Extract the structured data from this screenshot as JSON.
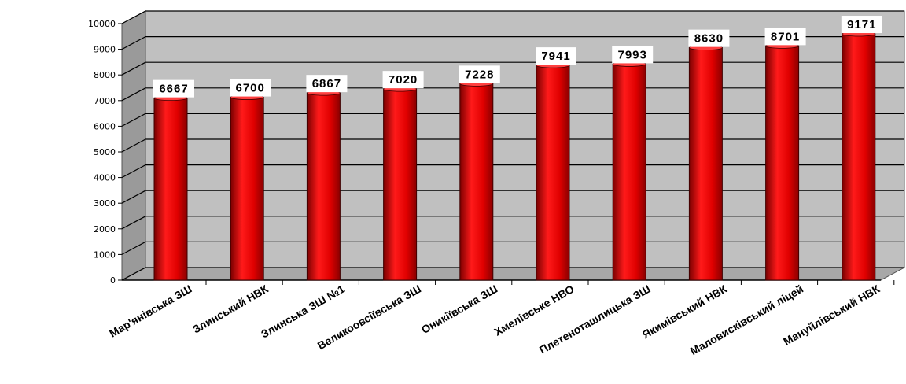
{
  "chart_data": {
    "type": "bar",
    "categories": [
      "Мар'янівська ЗШ",
      "Злинський НВК",
      "Злинська ЗШ №1",
      "Великоовсіївська ЗШ",
      "Оникіївська ЗШ",
      "Хмелівське НВО",
      "Плетеноташлицька ЗШ",
      "Якимівський НВК",
      "Маловисківський ліцей",
      "Мануйлівський НВК"
    ],
    "values": [
      6667,
      6700,
      6867,
      7020,
      7228,
      7941,
      7993,
      8630,
      8701,
      9171
    ],
    "ylim": [
      0,
      10000
    ],
    "yticks": [
      "0",
      "1000",
      "2000",
      "3000",
      "4000",
      "5000",
      "6000",
      "7000",
      "8000",
      "9000",
      "10000"
    ],
    "grid": true,
    "legend": "none",
    "colors": {
      "bar": "#e00000",
      "bar_dark": "#7a0000",
      "wall": "#c0c0c0",
      "floor": "#a8a8a8",
      "grid": "#000000"
    }
  }
}
